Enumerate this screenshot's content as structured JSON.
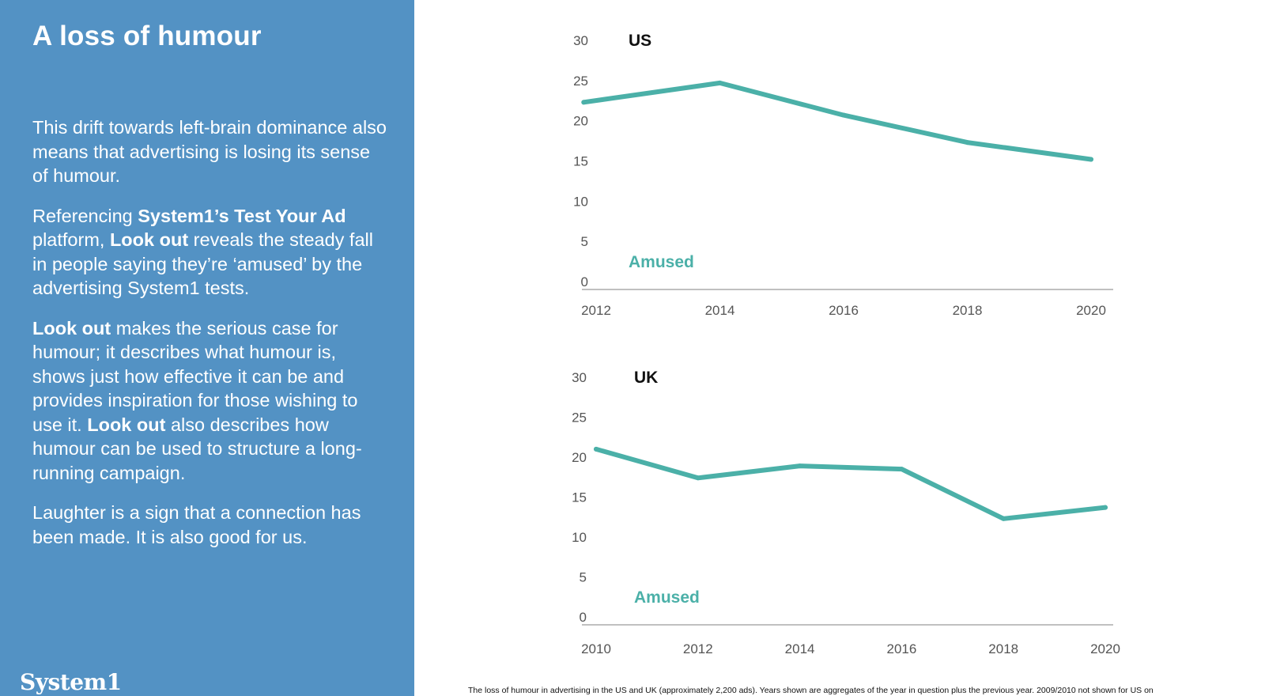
{
  "slide": {
    "title": "A loss of humour",
    "paragraphs": [
      [
        {
          "text": "This drift towards left-brain dominance also means that advertising is losing its sense of humour.",
          "bold": false
        }
      ],
      [
        {
          "text": "Referencing ",
          "bold": false
        },
        {
          "text": "System1’s Test Your Ad",
          "bold": true
        },
        {
          "text": " platform, ",
          "bold": false
        },
        {
          "text": "Look out",
          "bold": true
        },
        {
          "text": " reveals the steady fall in people saying they’re ‘amused’ by the advertising System1 tests.",
          "bold": false
        }
      ],
      [
        {
          "text": "Look out",
          "bold": true
        },
        {
          "text": " makes the serious case for humour; it describes what humour is, shows just how effective it can be and provides inspiration for those wishing to use it. ",
          "bold": false
        },
        {
          "text": "Look out",
          "bold": true
        },
        {
          "text": " also describes how humour can be used to structure a long-running campaign.",
          "bold": false
        }
      ],
      [
        {
          "text": "Laughter is a sign that a connection has been made. It is also good for us.",
          "bold": false
        }
      ]
    ],
    "brand": "System1",
    "caption": "The loss of humour in advertising in the US and UK (approximately 2,200 ads). Years shown are aggregates of the year in question plus the previous year. 2009/2010 not shown for US on"
  },
  "colors": {
    "panel": "#5392c4",
    "line": "#4bb0a8",
    "axis_text": "#555555",
    "title_text": "#111111"
  },
  "chart_data": [
    {
      "type": "line",
      "title": "US",
      "label": "Amused",
      "x": [
        2012,
        2014,
        2016,
        2018,
        2020
      ],
      "xticks": [
        "2012",
        "2014",
        "2016",
        "2018",
        "2020"
      ],
      "yticks": [
        "0",
        "5",
        "10",
        "15",
        "20",
        "25",
        "30"
      ],
      "ylim": [
        0,
        30
      ],
      "series": [
        {
          "x": [
            2011.8,
            2014,
            2016,
            2018,
            2020
          ],
          "values": [
            22.3,
            24.7,
            20.7,
            17.3,
            15.2
          ]
        }
      ],
      "grid": false
    },
    {
      "type": "line",
      "title": "UK",
      "label": "Amused",
      "x": [
        2010,
        2012,
        2014,
        2016,
        2018,
        2020
      ],
      "xticks": [
        "2010",
        "2012",
        "2014",
        "2016",
        "2018",
        "2020"
      ],
      "yticks": [
        "0",
        "5",
        "10",
        "15",
        "20",
        "25",
        "30"
      ],
      "ylim": [
        0,
        30
      ],
      "series": [
        {
          "x": [
            2010,
            2012,
            2014,
            2016,
            2018,
            2020
          ],
          "values": [
            21.0,
            17.4,
            18.9,
            18.5,
            12.3,
            13.7
          ]
        }
      ],
      "grid": false
    }
  ]
}
